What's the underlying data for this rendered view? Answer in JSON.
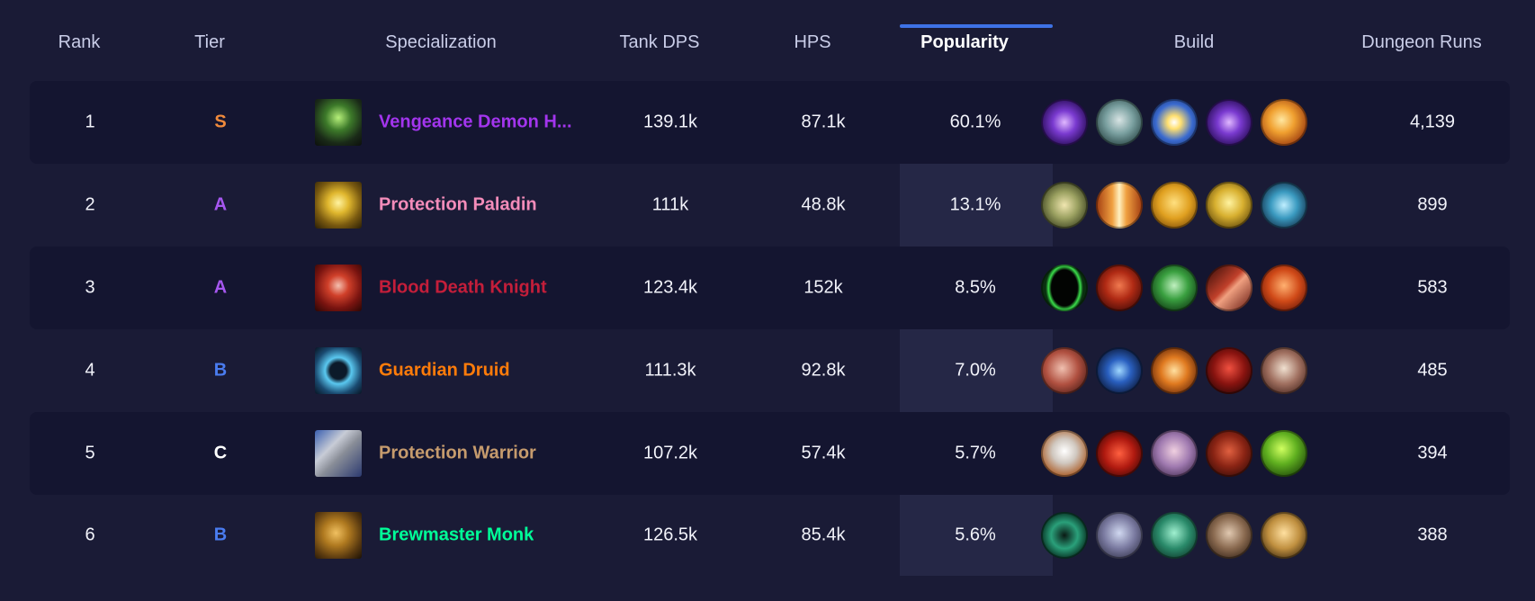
{
  "columns": {
    "rank": "Rank",
    "tier": "Tier",
    "specialization": "Specialization",
    "tank_dps": "Tank DPS",
    "hps": "HPS",
    "popularity": "Popularity",
    "build": "Build",
    "dungeon_runs": "Dungeon Runs"
  },
  "active_sort_column": "popularity",
  "colors": {
    "background": "#1a1b36",
    "row_dark": "#141530",
    "highlight_column": "#252746",
    "sort_indicator": "#3e72e6"
  },
  "rows": [
    {
      "rank": "1",
      "tier": "S",
      "tier_color": "#f08a3c",
      "spec": "Vengeance Demon H...",
      "spec_color": "#a335ee",
      "spec_icon": "vengeance-demon-hunter-icon",
      "tank_dps": "139.1k",
      "hps": "87.1k",
      "popularity": "60.1%",
      "runs": "4,139",
      "build": [
        "void-orb-talent-icon",
        "skull-talent-icon",
        "light-burst-talent-icon",
        "void-orb-talent-icon",
        "fire-spirit-talent-icon"
      ]
    },
    {
      "rank": "2",
      "tier": "A",
      "tier_color": "#a657f0",
      "spec": "Protection Paladin",
      "spec_color": "#f48cba",
      "spec_icon": "protection-paladin-icon",
      "tank_dps": "111k",
      "hps": "48.8k",
      "popularity": "13.1%",
      "runs": "899",
      "build": [
        "ardent-defender-talent-icon",
        "holy-pillar-talent-icon",
        "golden-warrior-talent-icon",
        "golden-helm-talent-icon",
        "blue-rune-talent-icon"
      ]
    },
    {
      "rank": "3",
      "tier": "A",
      "tier_color": "#a657f0",
      "spec": "Blood Death Knight",
      "spec_color": "#c41e3a",
      "spec_icon": "blood-death-knight-icon",
      "tank_dps": "123.4k",
      "hps": "152k",
      "popularity": "8.5%",
      "runs": "583",
      "build": [
        "green-portal-talent-icon",
        "demon-skull-talent-icon",
        "green-skull-talent-icon",
        "blood-blade-talent-icon",
        "blood-shield-talent-icon"
      ]
    },
    {
      "rank": "4",
      "tier": "B",
      "tier_color": "#4a7cf0",
      "spec": "Guardian Druid",
      "spec_color": "#ff7c0a",
      "spec_icon": "guardian-druid-icon",
      "tank_dps": "111.3k",
      "hps": "92.8k",
      "popularity": "7.0%",
      "runs": "485",
      "build": [
        "maul-talent-icon",
        "blue-claw-talent-icon",
        "fire-claw-talent-icon",
        "crimson-bear-talent-icon",
        "bone-claw-talent-icon"
      ]
    },
    {
      "rank": "5",
      "tier": "C",
      "tier_color": "#ffffff",
      "spec": "Protection Warrior",
      "spec_color": "#c69b6d",
      "spec_icon": "protection-warrior-icon",
      "tank_dps": "107.2k",
      "hps": "57.4k",
      "popularity": "5.7%",
      "runs": "394",
      "build": [
        "shield-talent-icon",
        "red-slash-talent-icon",
        "spirit-face-talent-icon",
        "demon-fist-talent-icon",
        "green-orc-talent-icon"
      ]
    },
    {
      "rank": "6",
      "tier": "B",
      "tier_color": "#4a7cf0",
      "spec": "Brewmaster Monk",
      "spec_color": "#00ff98",
      "spec_icon": "brewmaster-monk-icon",
      "tank_dps": "126.5k",
      "hps": "85.4k",
      "popularity": "5.6%",
      "runs": "388",
      "build": [
        "jade-vortex-talent-icon",
        "spirit-form-talent-icon",
        "jade-serpent-talent-icon",
        "stone-fist-talent-icon",
        "monk-brawler-talent-icon"
      ]
    }
  ]
}
